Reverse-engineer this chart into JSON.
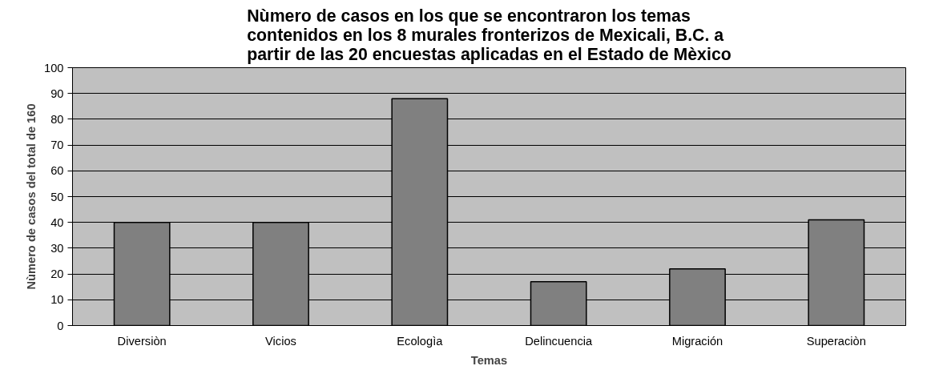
{
  "chart_data": {
    "type": "bar",
    "title": "Nùmero de casos en los que se encontraron los temas\ncontenidos en los 8 murales fronterizos de Mexicali, B.C. a\npartir de las 20 encuestas aplicadas en el Estado de Mèxico",
    "xlabel": "Temas",
    "ylabel": "Nùmero de casos del total de 160",
    "categories": [
      "Diversiòn",
      "Vicios",
      "Ecologìa",
      "Delincuencia",
      "Migración",
      "Superaciòn"
    ],
    "values": [
      40,
      40,
      88,
      17,
      22,
      41
    ],
    "color": "#808080",
    "ylim": [
      0,
      100
    ],
    "yticks": [
      0,
      10,
      20,
      30,
      40,
      50,
      60,
      70,
      80,
      90,
      100
    ],
    "grid": "y"
  }
}
